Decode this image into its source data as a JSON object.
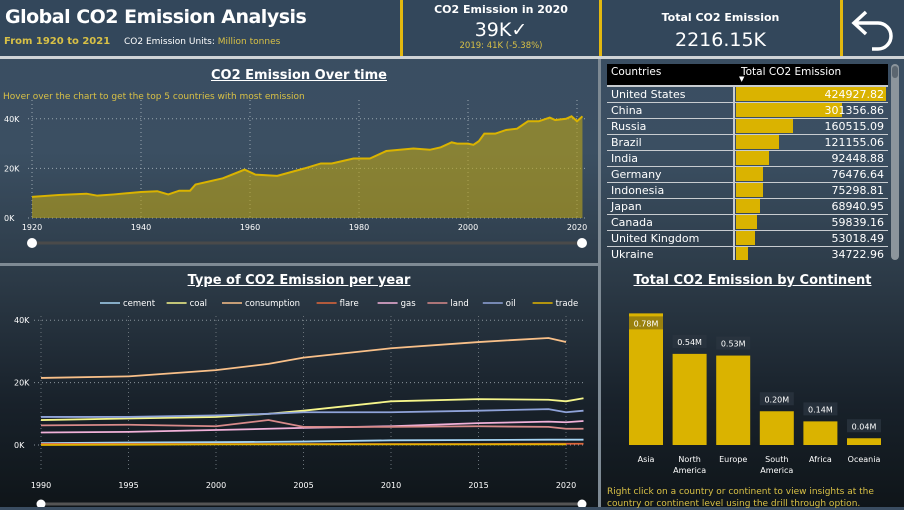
{
  "header": {
    "title": "Global CO2 Emission Analysis",
    "period": "From 1920 to 2021",
    "units_label": "CO2 Emission Units:",
    "units_value": "Million tonnes"
  },
  "kpi_2020": {
    "title": "CO2 Emission in 2020",
    "value": "39K",
    "check_icon": "✓",
    "comparison": "2019: 41K (-5.38%)"
  },
  "kpi_total": {
    "title": "Total CO2 Emission",
    "value": "2216.15K"
  },
  "back_button": {
    "icon": "back-arrow-icon"
  },
  "colors": {
    "accent": "#dab300",
    "background": "#33475b"
  },
  "footer_hint": "Right click on a country or continent to view insights at the country or continent level using the drill through option.",
  "countries_table": {
    "headers": [
      "Countries",
      "Total CO2 Emission"
    ],
    "sort_icon": "▼",
    "rows": [
      [
        "United States",
        "424927.82"
      ],
      [
        "China",
        "301356.86"
      ],
      [
        "Russia",
        "160515.09"
      ],
      [
        "Brazil",
        "121155.06"
      ],
      [
        "India",
        "92448.88"
      ],
      [
        "Germany",
        "76476.64"
      ],
      [
        "Indonesia",
        "75298.81"
      ],
      [
        "Japan",
        "68940.95"
      ],
      [
        "Canada",
        "59839.16"
      ],
      [
        "United Kingdom",
        "53018.49"
      ],
      [
        "Ukraine",
        "34722.96"
      ]
    ]
  },
  "chart_data": [
    {
      "type": "area",
      "title": "CO2 Emission Over time",
      "hint": "Hover over the chart to get the top 5 countries with most emission",
      "ylim": [
        0,
        40
      ],
      "y_ticks": [
        "0K",
        "20K",
        "40K"
      ],
      "x_ticks": [
        "1920",
        "1940",
        "1960",
        "1980",
        "2000",
        "2020"
      ],
      "color": "#dab300",
      "grid": true,
      "x": [
        1920,
        1925,
        1930,
        1932,
        1935,
        1940,
        1943,
        1945,
        1947,
        1949,
        1950,
        1955,
        1959,
        1961,
        1965,
        1970,
        1973,
        1975,
        1979,
        1982,
        1985,
        1990,
        1993,
        1995,
        1997,
        1998,
        2000,
        2001,
        2002,
        2003,
        2005,
        2007,
        2009,
        2011,
        2013,
        2015,
        2016,
        2018,
        2019,
        2020,
        2021
      ],
      "y": [
        8.5,
        9.3,
        9.8,
        9,
        9.5,
        10.5,
        10.8,
        9.5,
        11,
        11,
        13.5,
        16,
        19.5,
        17.5,
        17,
        20,
        22,
        22,
        24,
        24,
        27,
        28,
        27.5,
        28.5,
        30.5,
        30,
        30,
        29.5,
        31,
        34,
        34,
        35.5,
        36,
        39,
        39,
        40.5,
        39.5,
        40,
        41,
        39,
        41
      ]
    },
    {
      "type": "line",
      "title": "Type of CO2 Emission per year",
      "ylim": [
        0,
        40
      ],
      "y_ticks": [
        "0K",
        "20K",
        "40K"
      ],
      "x_ticks": [
        "1990",
        "1995",
        "2000",
        "2005",
        "2010",
        "2015",
        "2020"
      ],
      "grid": true,
      "legend": "top",
      "x": [
        1990,
        1995,
        2000,
        2003,
        2005,
        2010,
        2015,
        2019,
        2020,
        2021
      ],
      "series": [
        {
          "name": "cement",
          "color": "#a6d4f2",
          "values": [
            0.6,
            0.8,
            0.9,
            1,
            1.1,
            1.5,
            1.6,
            1.7,
            1.7,
            1.7
          ]
        },
        {
          "name": "coal",
          "color": "#f5f58a",
          "values": [
            8,
            8.5,
            9,
            10,
            11,
            14,
            14.7,
            14.5,
            14,
            15
          ]
        },
        {
          "name": "consumption",
          "color": "#f9c089",
          "values": [
            21.5,
            22,
            24,
            26,
            28,
            31,
            33,
            34.3,
            33,
            null
          ]
        },
        {
          "name": "flare",
          "color": "#e0663a",
          "values": [
            0.3,
            0.3,
            0.3,
            0.3,
            0.3,
            0.3,
            0.3,
            0.4,
            0.4,
            0.4
          ]
        },
        {
          "name": "gas",
          "color": "#f1b1d9",
          "values": [
            4,
            4.2,
            4.8,
            5.2,
            5.5,
            6,
            7,
            7.5,
            7.3,
            7.7
          ]
        },
        {
          "name": "land",
          "color": "#d88a8a",
          "values": [
            6.3,
            6.5,
            6,
            8,
            5.8,
            5.8,
            6,
            5.8,
            5.2,
            5.2
          ]
        },
        {
          "name": "oil",
          "color": "#8fa3d9",
          "values": [
            9,
            9,
            9.5,
            10,
            10.5,
            10.5,
            11,
            11.5,
            10.5,
            11
          ]
        },
        {
          "name": "trade",
          "color": "#e0b400",
          "values": [
            0,
            0.1,
            0.2,
            0.2,
            0.2,
            0.2,
            0.2,
            0.2,
            0.2,
            null
          ]
        }
      ]
    },
    {
      "type": "bar",
      "title": "Total CO2 Emission by Continent",
      "categories": [
        "Asia",
        "North America",
        "Europe",
        "South America",
        "Africa",
        "Oceania"
      ],
      "values": [
        0.78,
        0.54,
        0.53,
        0.2,
        0.14,
        0.04
      ],
      "labels": [
        "0.78M",
        "0.54M",
        "0.53M",
        "0.20M",
        "0.14M",
        "0.04M"
      ],
      "color": "#dab300",
      "ylim": [
        0,
        0.8
      ]
    }
  ]
}
